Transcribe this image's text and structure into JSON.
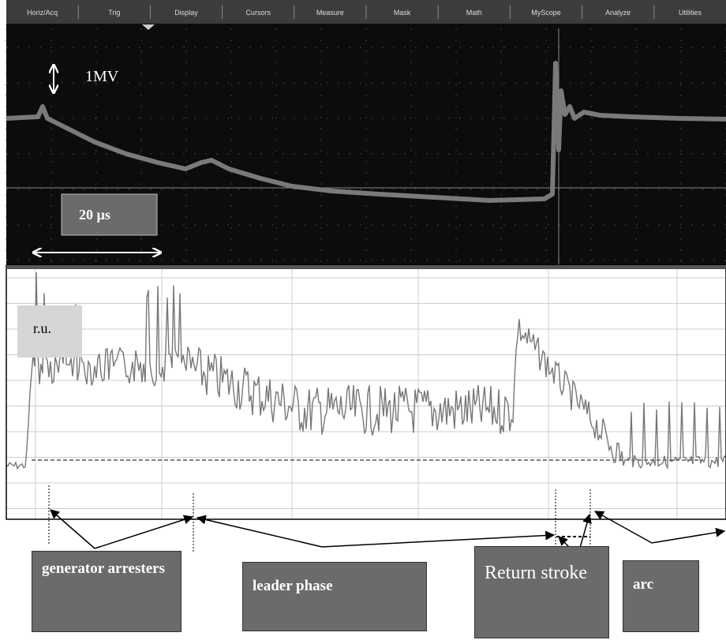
{
  "menu": [
    "Horiz/Acq",
    "Trig",
    "Display",
    "Cursors",
    "Measure",
    "Mask",
    "Math",
    "MyScope",
    "Analyze",
    "Utilities"
  ],
  "scope": {
    "scale_label": "1MV",
    "time_label": "20 µs"
  },
  "plot": {
    "unit_label": "r.u."
  },
  "annotations": {
    "generator": "generator arresters",
    "leader": "leader phase",
    "return_stroke": "Return stroke",
    "arc": "arc"
  }
}
